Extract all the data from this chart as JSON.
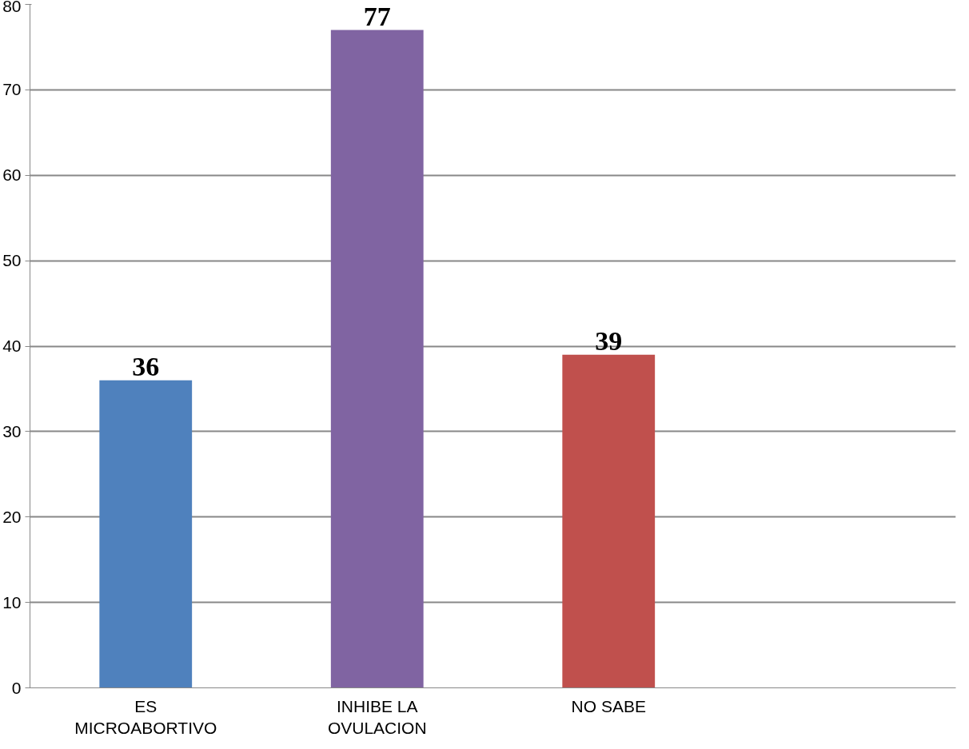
{
  "chart_data": {
    "type": "bar",
    "categories": [
      "ES MICROABORTIVO",
      "INHIBE LA OVULACION",
      "NO SABE",
      null
    ],
    "values": [
      36,
      77,
      39,
      null
    ],
    "colors": [
      "#4f81bd",
      "#8064a2",
      "#c0504d",
      "#808080"
    ],
    "ylim": [
      0,
      80
    ],
    "yticks": [
      0,
      10,
      20,
      30,
      40,
      50,
      60,
      70,
      80
    ],
    "grid": "y",
    "data_labels": true
  }
}
